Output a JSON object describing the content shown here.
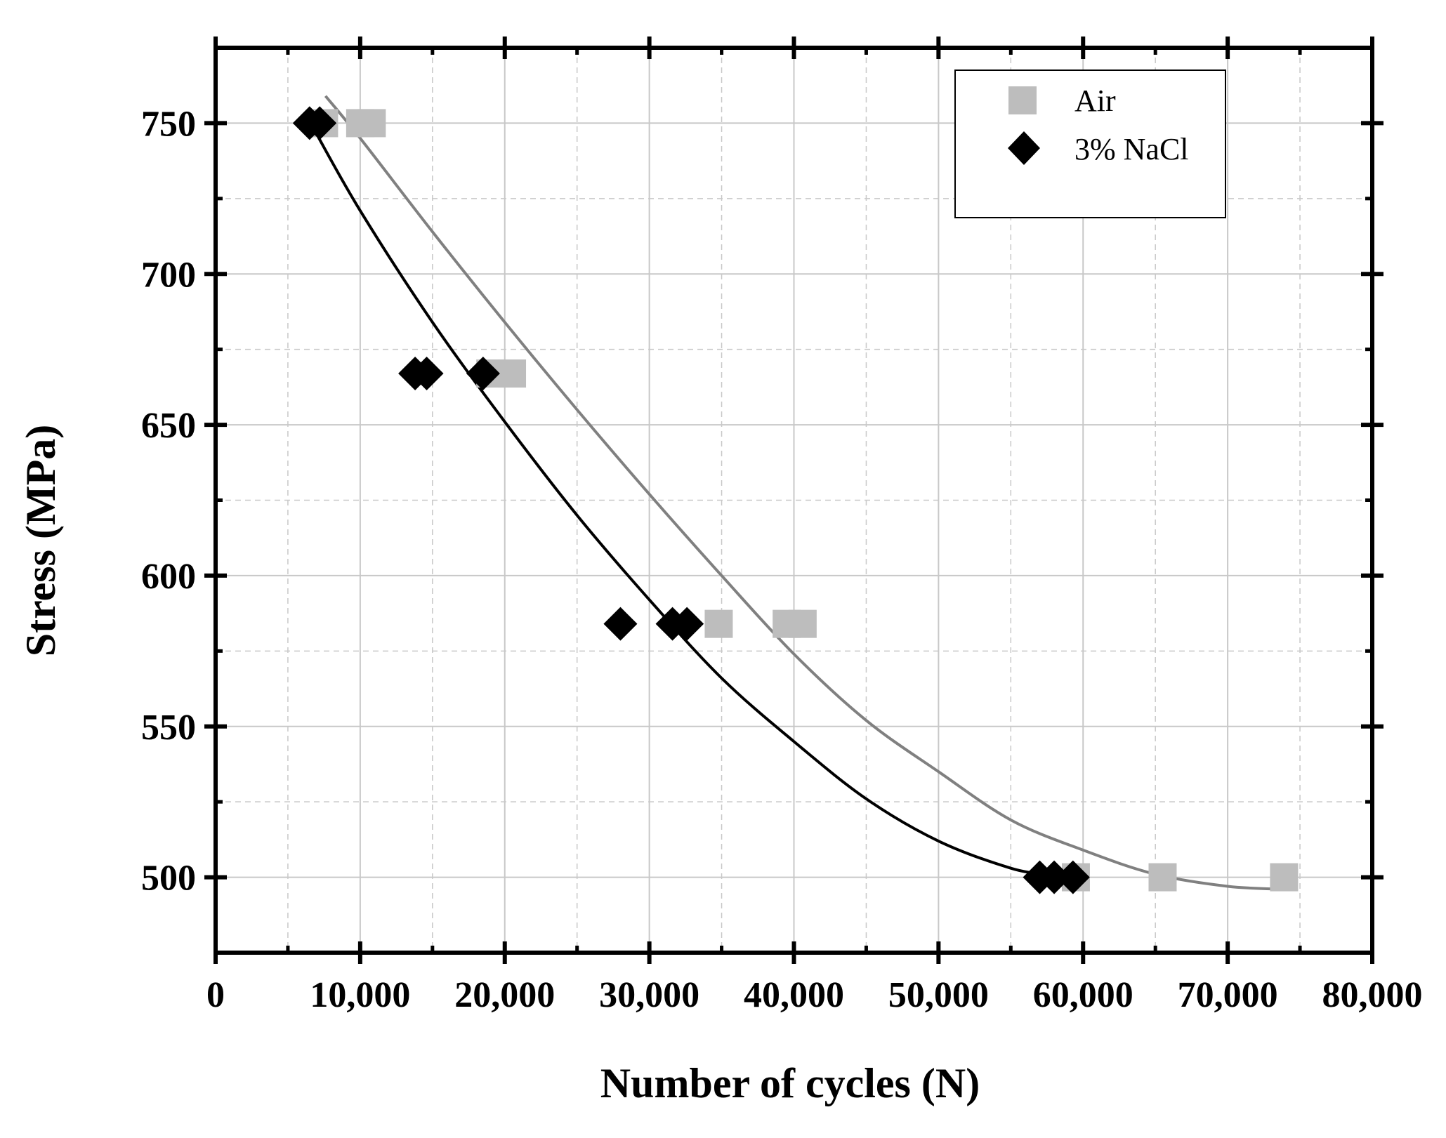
{
  "chart_data": {
    "type": "scatter",
    "title": "",
    "xlabel": "Number of cycles (N)",
    "ylabel": "Stress (MPa)",
    "xlim": [
      0,
      80000
    ],
    "ylim": [
      475,
      775
    ],
    "x_ticks": [
      0,
      10000,
      20000,
      30000,
      40000,
      50000,
      60000,
      70000,
      80000
    ],
    "x_tick_labels": [
      "0",
      "10,000",
      "20,000",
      "30,000",
      "40,000",
      "50,000",
      "60,000",
      "70,000",
      "80,000"
    ],
    "y_ticks": [
      500,
      550,
      600,
      650,
      700,
      750
    ],
    "y_tick_labels": [
      "500",
      "550",
      "600",
      "650",
      "700",
      "750"
    ],
    "grid": true,
    "legend_position": "top-right",
    "series": [
      {
        "name": "Air",
        "marker": "square",
        "color": "#bdbdbd",
        "points": [
          {
            "x": 7500,
            "y": 750
          },
          {
            "x": 10000,
            "y": 750
          },
          {
            "x": 10800,
            "y": 750
          },
          {
            "x": 19000,
            "y": 667
          },
          {
            "x": 20500,
            "y": 667
          },
          {
            "x": 34800,
            "y": 584
          },
          {
            "x": 39500,
            "y": 584
          },
          {
            "x": 40600,
            "y": 584
          },
          {
            "x": 59500,
            "y": 500
          },
          {
            "x": 65500,
            "y": 500
          },
          {
            "x": 73900,
            "y": 500
          }
        ],
        "fit": {
          "color": "#808080",
          "x": [
            7600,
            10000,
            15000,
            20000,
            25000,
            30000,
            35000,
            40000,
            45000,
            50000,
            55000,
            60000,
            65000,
            70000,
            73900
          ],
          "y": [
            759,
            745,
            714,
            684,
            655,
            627,
            600,
            574,
            552,
            535,
            519,
            509,
            501,
            497,
            496
          ]
        }
      },
      {
        "name": "3% NaCl",
        "marker": "diamond",
        "color": "#000000",
        "points": [
          {
            "x": 6500,
            "y": 750
          },
          {
            "x": 7200,
            "y": 750
          },
          {
            "x": 13800,
            "y": 667
          },
          {
            "x": 14600,
            "y": 667
          },
          {
            "x": 18500,
            "y": 667
          },
          {
            "x": 28000,
            "y": 584
          },
          {
            "x": 31600,
            "y": 584
          },
          {
            "x": 32600,
            "y": 584
          },
          {
            "x": 57000,
            "y": 500
          },
          {
            "x": 58000,
            "y": 500
          },
          {
            "x": 59300,
            "y": 500
          }
        ],
        "fit": {
          "color": "#000000",
          "x": [
            6800,
            10000,
            15000,
            20000,
            25000,
            30000,
            35000,
            40000,
            45000,
            50000,
            55000,
            57500
          ],
          "y": [
            748,
            721,
            684,
            651,
            620,
            592,
            566,
            545,
            526,
            512,
            503,
            501
          ]
        }
      }
    ]
  }
}
